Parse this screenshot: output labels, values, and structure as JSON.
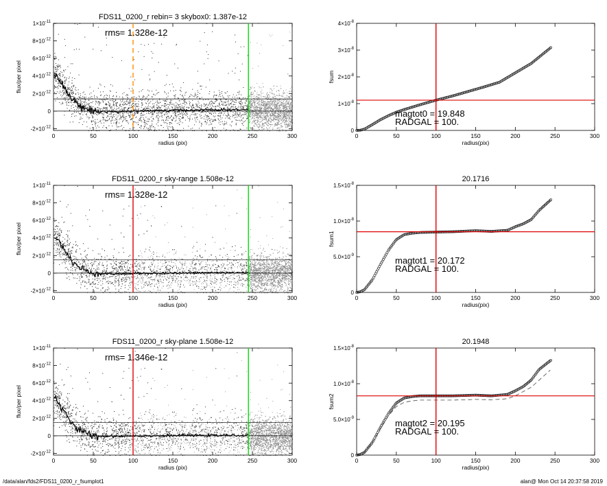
{
  "footer": {
    "path": "/data/alan/fds2/FDS11_0200_r_fsumplot1",
    "stamp": "alan@  Mon Oct 14 20:37:58 2019"
  },
  "chart_data": [
    {
      "id": "profile-1",
      "type": "scatter",
      "title": "FDS11_0200_r rebin= 3    skybox0:  1.387e-12",
      "annotations": [
        "rms= 1.328e-12"
      ],
      "xlabel": "radius (pix)",
      "ylabel": "flux/per pixel",
      "xlim": [
        0,
        300
      ],
      "ylim": [
        -2.2e-12,
        1e-11
      ],
      "xticks": [
        "0",
        "50",
        "100",
        "150",
        "200",
        "250",
        "300"
      ],
      "yticks": [
        {
          "v": 1e-11,
          "m": "1×10",
          "e": "-11"
        },
        {
          "v": 8e-12,
          "m": "8×10",
          "e": "-12"
        },
        {
          "v": 6e-12,
          "m": "6×10",
          "e": "-12"
        },
        {
          "v": 4e-12,
          "m": "4×10",
          "e": "-12"
        },
        {
          "v": 2e-12,
          "m": "2×10",
          "e": "-12"
        },
        {
          "v": 0,
          "m": "0",
          "e": ""
        },
        {
          "v": -2e-12,
          "m": "-2×10",
          "e": "-12"
        }
      ],
      "hlines": [
        0,
        1.387e-12
      ],
      "vlines": [
        {
          "x": 100,
          "color": "#ff8c00",
          "dashed": true
        },
        {
          "x": 245,
          "color": "#00dd00",
          "dashed": false
        }
      ],
      "profile": {
        "x": [
          1,
          3,
          5,
          8,
          10,
          13,
          16,
          20,
          25,
          30,
          35,
          40,
          45,
          50,
          60,
          70,
          80,
          100,
          130,
          160,
          200,
          245
        ],
        "y": [
          4.2e-12,
          4.4e-12,
          3.9e-12,
          3.5e-12,
          3.1e-12,
          2.7e-12,
          2.3e-12,
          1.8e-12,
          1.2e-12,
          8e-13,
          5e-13,
          3e-13,
          1.5e-13,
          5e-14,
          -5e-14,
          -5e-14,
          -1e-13,
          0,
          5e-14,
          1e-13,
          1.5e-13,
          1.5e-13
        ]
      }
    },
    {
      "id": "profile-2",
      "type": "scatter",
      "title": "FDS11_0200_r sky-range  1.508e-12",
      "annotations": [
        "rms= 1.328e-12"
      ],
      "xlabel": "radius (pix)",
      "ylabel": "flux/per pixel",
      "xlim": [
        0,
        300
      ],
      "ylim": [
        -2.2e-12,
        1e-11
      ],
      "xticks": [
        "0",
        "50",
        "100",
        "150",
        "200",
        "250",
        "300"
      ],
      "yticks": [
        {
          "v": 1e-11,
          "m": "1×10",
          "e": "-11"
        },
        {
          "v": 8e-12,
          "m": "8×10",
          "e": "-12"
        },
        {
          "v": 6e-12,
          "m": "6×10",
          "e": "-12"
        },
        {
          "v": 4e-12,
          "m": "4×10",
          "e": "-12"
        },
        {
          "v": 2e-12,
          "m": "2×10",
          "e": "-12"
        },
        {
          "v": 0,
          "m": "0",
          "e": ""
        },
        {
          "v": -2e-12,
          "m": "-2×10",
          "e": "-12"
        }
      ],
      "hlines": [
        0,
        1.508e-12
      ],
      "vlines": [
        {
          "x": 100,
          "color": "#dd0000",
          "dashed": false
        },
        {
          "x": 245,
          "color": "#00dd00",
          "dashed": false
        }
      ],
      "profile": {
        "x": [
          1,
          3,
          5,
          8,
          10,
          13,
          16,
          20,
          25,
          30,
          35,
          40,
          45,
          50,
          60,
          70,
          80,
          100,
          130,
          160,
          200,
          245
        ],
        "y": [
          4.2e-12,
          4.3e-12,
          3.9e-12,
          3.5e-12,
          3.1e-12,
          2.7e-12,
          2.3e-12,
          1.8e-12,
          1.2e-12,
          8e-13,
          5e-13,
          3e-13,
          1.5e-13,
          5e-14,
          -5e-14,
          -8e-14,
          -1e-13,
          -5e-14,
          0,
          0,
          5e-14,
          5e-14
        ]
      }
    },
    {
      "id": "profile-3",
      "type": "scatter",
      "title": "FDS11_0200_r sky-plane  1.508e-12",
      "annotations": [
        "rms= 1.346e-12"
      ],
      "xlabel": "radius (pix)",
      "ylabel": "flux/per pixel",
      "xlim": [
        0,
        300
      ],
      "ylim": [
        -2.2e-12,
        1e-11
      ],
      "xticks": [
        "0",
        "50",
        "100",
        "150",
        "200",
        "250",
        "300"
      ],
      "yticks": [
        {
          "v": 1e-11,
          "m": "1×10",
          "e": "-11"
        },
        {
          "v": 8e-12,
          "m": "8×10",
          "e": "-12"
        },
        {
          "v": 6e-12,
          "m": "6×10",
          "e": "-12"
        },
        {
          "v": 4e-12,
          "m": "4×10",
          "e": "-12"
        },
        {
          "v": 2e-12,
          "m": "2×10",
          "e": "-12"
        },
        {
          "v": 0,
          "m": "0",
          "e": ""
        },
        {
          "v": -2e-12,
          "m": "-2×10",
          "e": "-12"
        }
      ],
      "hlines": [
        0,
        1.508e-12
      ],
      "vlines": [
        {
          "x": 100,
          "color": "#dd0000",
          "dashed": false
        },
        {
          "x": 245,
          "color": "#00dd00",
          "dashed": false
        }
      ],
      "profile": {
        "x": [
          1,
          3,
          5,
          8,
          10,
          13,
          16,
          20,
          25,
          30,
          35,
          40,
          45,
          50,
          60,
          70,
          80,
          100,
          130,
          160,
          200,
          245
        ],
        "y": [
          4.2e-12,
          4.5e-12,
          3.9e-12,
          3.5e-12,
          3.1e-12,
          2.7e-12,
          2.3e-12,
          1.8e-12,
          1.2e-12,
          8e-13,
          5e-13,
          3e-13,
          1.5e-13,
          5e-14,
          -5e-14,
          -5e-14,
          -5e-14,
          0,
          0,
          5e-14,
          5e-14,
          5e-14
        ]
      }
    },
    {
      "id": "fsum-1",
      "type": "scatter",
      "title": "",
      "annotations": [
        "magtot0 = 19.848",
        "RADGAL =    100."
      ],
      "xlabel": "radius(pix)",
      "ylabel": "fsum",
      "xlim": [
        0,
        300
      ],
      "ylim": [
        0,
        4e-08
      ],
      "xticks": [
        "0",
        "50",
        "100",
        "150",
        "200",
        "250",
        "300"
      ],
      "yticks": [
        {
          "v": 0,
          "m": "0",
          "e": ""
        },
        {
          "v": 1e-08,
          "m": "1×10",
          "e": "-8"
        },
        {
          "v": 2e-08,
          "m": "2×10",
          "e": "-8"
        },
        {
          "v": 3e-08,
          "m": "3×10",
          "e": "-8"
        },
        {
          "v": 4e-08,
          "m": "4×10",
          "e": "-8"
        }
      ],
      "hline": {
        "y": 1.13e-08,
        "color": "#dd0000"
      },
      "vline": {
        "x": 100,
        "color": "#dd0000"
      },
      "curve": {
        "x": [
          0,
          5,
          10,
          20,
          30,
          40,
          50,
          60,
          80,
          100,
          120,
          140,
          160,
          180,
          200,
          220,
          245
        ],
        "y": [
          0,
          1e-10,
          5e-10,
          2.2e-09,
          4e-09,
          5.5e-09,
          6.8e-09,
          7.8e-09,
          9.6e-09,
          1.13e-08,
          1.28e-08,
          1.45e-08,
          1.62e-08,
          1.8e-08,
          2.15e-08,
          2.5e-08,
          3.1e-08
        ]
      }
    },
    {
      "id": "fsum-2",
      "type": "scatter",
      "title": "20.1716",
      "annotations": [
        "magtot1 = 20.172",
        "RADGAL =    100."
      ],
      "xlabel": "radius(pix)",
      "ylabel": "fsum1",
      "xlim": [
        0,
        300
      ],
      "ylim": [
        0,
        1.5e-08
      ],
      "xticks": [
        "0",
        "50",
        "100",
        "150",
        "200",
        "250",
        "300"
      ],
      "yticks": [
        {
          "v": 0,
          "m": "0",
          "e": ""
        },
        {
          "v": 5e-09,
          "m": "5.0×10",
          "e": "-9"
        },
        {
          "v": 1e-08,
          "m": "1.0×10",
          "e": "-8"
        },
        {
          "v": 1.5e-08,
          "m": "1.5×10",
          "e": "-8"
        }
      ],
      "hline": {
        "y": 8.5e-09,
        "color": "#dd0000"
      },
      "vline": {
        "x": 100,
        "color": "#dd0000"
      },
      "curve": {
        "x": [
          0,
          5,
          10,
          20,
          30,
          40,
          50,
          60,
          70,
          80,
          100,
          120,
          150,
          170,
          190,
          200,
          210,
          220,
          230,
          245
        ],
        "y": [
          0,
          1e-10,
          4e-10,
          1.8e-09,
          3.9e-09,
          5.9e-09,
          7.4e-09,
          8.1e-09,
          8.3e-09,
          8.4e-09,
          8.45e-09,
          8.5e-09,
          8.65e-09,
          8.55e-09,
          8.7e-09,
          9.2e-09,
          9.6e-09,
          1.02e-08,
          1.15e-08,
          1.3e-08
        ]
      }
    },
    {
      "id": "fsum-3",
      "type": "scatter",
      "title": "20.1948",
      "annotations": [
        "magtot2 = 20.195",
        "RADGAL =    100."
      ],
      "xlabel": "radius(pix)",
      "ylabel": "fsum2",
      "xlim": [
        0,
        300
      ],
      "ylim": [
        0,
        1.5e-08
      ],
      "xticks": [
        "0",
        "50",
        "100",
        "150",
        "200",
        "250",
        "300"
      ],
      "yticks": [
        {
          "v": 0,
          "m": "0",
          "e": ""
        },
        {
          "v": 5e-09,
          "m": "5.0×10",
          "e": "-9"
        },
        {
          "v": 1e-08,
          "m": "1.0×10",
          "e": "-8"
        },
        {
          "v": 1.5e-08,
          "m": "1.5×10",
          "e": "-8"
        }
      ],
      "hline": {
        "y": 8.3e-09,
        "color": "#dd0000"
      },
      "vline": {
        "x": 100,
        "color": "#dd0000"
      },
      "curve": {
        "x": [
          0,
          5,
          10,
          20,
          30,
          40,
          50,
          60,
          70,
          80,
          100,
          120,
          150,
          170,
          190,
          200,
          210,
          220,
          230,
          245
        ],
        "y": [
          0,
          1e-10,
          4e-10,
          1.8e-09,
          3.9e-09,
          5.8e-09,
          7.3e-09,
          8e-09,
          8.2e-09,
          8.3e-09,
          8.3e-09,
          8.3e-09,
          8.4e-09,
          8.3e-09,
          8.5e-09,
          9e-09,
          9.6e-09,
          1.05e-08,
          1.2e-08,
          1.33e-08
        ]
      },
      "dashed_curve": {
        "x": [
          0,
          10,
          20,
          30,
          40,
          50,
          60,
          70,
          80,
          100,
          120,
          150,
          170,
          190,
          200,
          220,
          245
        ],
        "y": [
          0,
          4e-10,
          1.8e-09,
          3.8e-09,
          5.5e-09,
          6.8e-09,
          7.4e-09,
          7.6e-09,
          7.7e-09,
          7.7e-09,
          7.7e-09,
          7.8e-09,
          7.75e-09,
          7.9e-09,
          8.3e-09,
          9.5e-09,
          1.2e-08
        ]
      }
    }
  ]
}
